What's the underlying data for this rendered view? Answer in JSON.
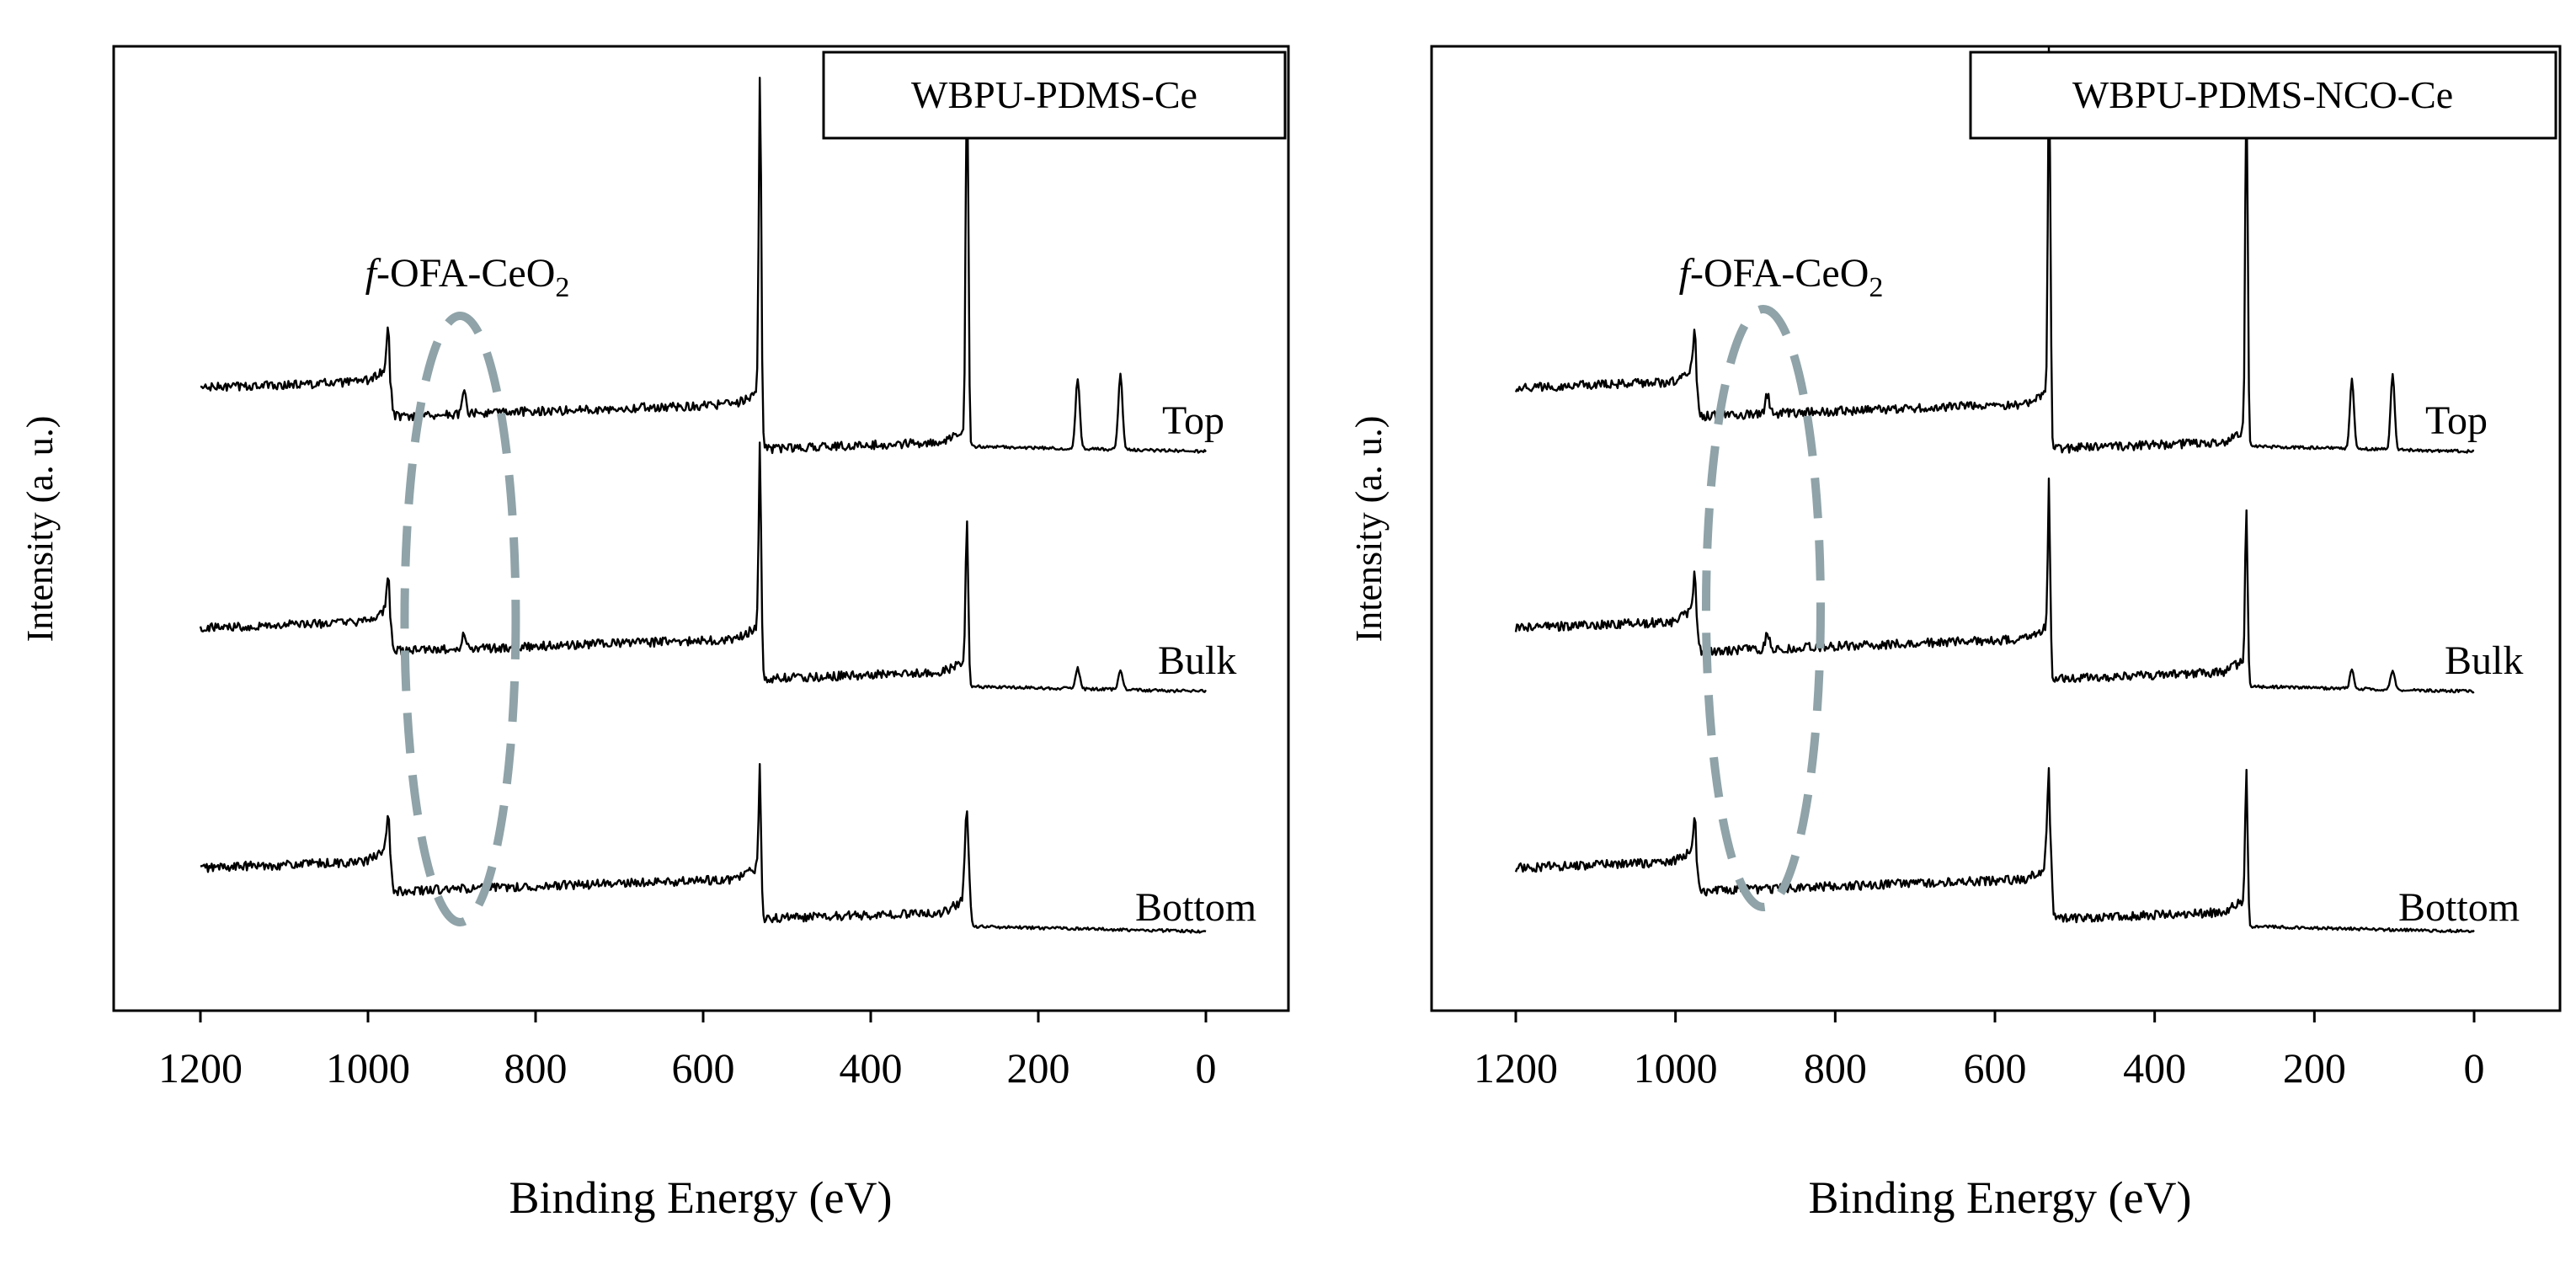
{
  "chart_data": [
    {
      "type": "line",
      "title": "WBPU-PDMS-Ce",
      "xlabel": "Binding Energy (eV)",
      "ylabel": "Intensity (a. u.)",
      "xlim": [
        1300,
        -100
      ],
      "x_ticks": [
        1200,
        1000,
        800,
        600,
        400,
        200,
        0
      ],
      "x_tick_labels": [
        "1200",
        "1000",
        "800",
        "600",
        "400",
        "200",
        "0"
      ],
      "annotation": {
        "italic_part": "f",
        "text": "-OFA-CeO",
        "subscript": "2",
        "target_range_eV": [
          950,
          830
        ]
      },
      "series": [
        {
          "name": "Top",
          "offset": 2,
          "baseline_high": 0.58,
          "baseline_low": 0.0,
          "peaks": [
            {
              "x": 975,
              "h": 0.45
            },
            {
              "x": 885,
              "h": 0.2
            },
            {
              "x": 532,
              "h": 3.3
            },
            {
              "x": 285,
              "h": 3.8
            },
            {
              "x": 153,
              "h": 0.7
            },
            {
              "x": 102,
              "h": 0.75
            }
          ],
          "steps": [
            {
              "x": 975,
              "drop": 0.35
            },
            {
              "x": 532,
              "drop": 0.45
            },
            {
              "x": 285,
              "drop": 0.55
            }
          ]
        },
        {
          "name": "Bulk",
          "offset": 1,
          "baseline_high": 0.58,
          "baseline_low": 0.0,
          "peaks": [
            {
              "x": 975,
              "h": 0.4
            },
            {
              "x": 885,
              "h": 0.15
            },
            {
              "x": 532,
              "h": 1.9
            },
            {
              "x": 285,
              "h": 1.5
            },
            {
              "x": 153,
              "h": 0.2
            },
            {
              "x": 102,
              "h": 0.2
            }
          ],
          "steps": [
            {
              "x": 975,
              "drop": 0.3
            },
            {
              "x": 532,
              "drop": 0.4
            },
            {
              "x": 285,
              "drop": 0.55
            }
          ]
        },
        {
          "name": "Bottom",
          "offset": 0,
          "baseline_high": 0.58,
          "baseline_low": 0.0,
          "peaks": [
            {
              "x": 975,
              "h": 0.4
            },
            {
              "x": 532,
              "h": 1.1
            },
            {
              "x": 285,
              "h": 1.0
            }
          ],
          "steps": [
            {
              "x": 975,
              "drop": 0.3
            },
            {
              "x": 532,
              "drop": 0.4
            },
            {
              "x": 285,
              "drop": 0.6
            }
          ]
        }
      ]
    },
    {
      "type": "line",
      "title": "WBPU-PDMS-NCO-Ce",
      "xlabel": "Binding Energy (eV)",
      "ylabel": "Intensity (a. u.)",
      "xlim": [
        1300,
        -100
      ],
      "x_ticks": [
        1200,
        1000,
        800,
        600,
        400,
        200,
        0
      ],
      "x_tick_labels": [
        "1200",
        "1000",
        "800",
        "600",
        "400",
        "200",
        "0"
      ],
      "annotation": {
        "italic_part": "f",
        "text": "-OFA-CeO",
        "subscript": "2",
        "target_range_eV": [
          950,
          830
        ]
      },
      "series": [
        {
          "name": "Top",
          "offset": 2,
          "baseline_high": 0.58,
          "baseline_low": 0.0,
          "peaks": [
            {
              "x": 975,
              "h": 0.45
            },
            {
              "x": 885,
              "h": 0.2
            },
            {
              "x": 532,
              "h": 3.6
            },
            {
              "x": 285,
              "h": 3.6
            },
            {
              "x": 153,
              "h": 0.7
            },
            {
              "x": 102,
              "h": 0.75
            }
          ],
          "steps": [
            {
              "x": 975,
              "drop": 0.35
            },
            {
              "x": 532,
              "drop": 0.45
            },
            {
              "x": 285,
              "drop": 0.55
            }
          ]
        },
        {
          "name": "Bulk",
          "offset": 1,
          "baseline_high": 0.58,
          "baseline_low": 0.0,
          "peaks": [
            {
              "x": 975,
              "h": 0.4
            },
            {
              "x": 885,
              "h": 0.15
            },
            {
              "x": 532,
              "h": 1.5
            },
            {
              "x": 285,
              "h": 1.6
            },
            {
              "x": 153,
              "h": 0.2
            },
            {
              "x": 102,
              "h": 0.2
            }
          ],
          "steps": [
            {
              "x": 975,
              "drop": 0.3
            },
            {
              "x": 532,
              "drop": 0.4
            },
            {
              "x": 285,
              "drop": 0.55
            }
          ]
        },
        {
          "name": "Bottom",
          "offset": 0,
          "baseline_high": 0.58,
          "baseline_low": 0.0,
          "peaks": [
            {
              "x": 975,
              "h": 0.4
            },
            {
              "x": 532,
              "h": 1.0
            },
            {
              "x": 285,
              "h": 1.4
            }
          ],
          "steps": [
            {
              "x": 975,
              "drop": 0.3
            },
            {
              "x": 532,
              "drop": 0.4
            },
            {
              "x": 285,
              "drop": 0.6
            }
          ]
        }
      ]
    }
  ],
  "colors": {
    "line": "#000000",
    "ellipse": "#8fa3a8",
    "background": "#ffffff"
  }
}
